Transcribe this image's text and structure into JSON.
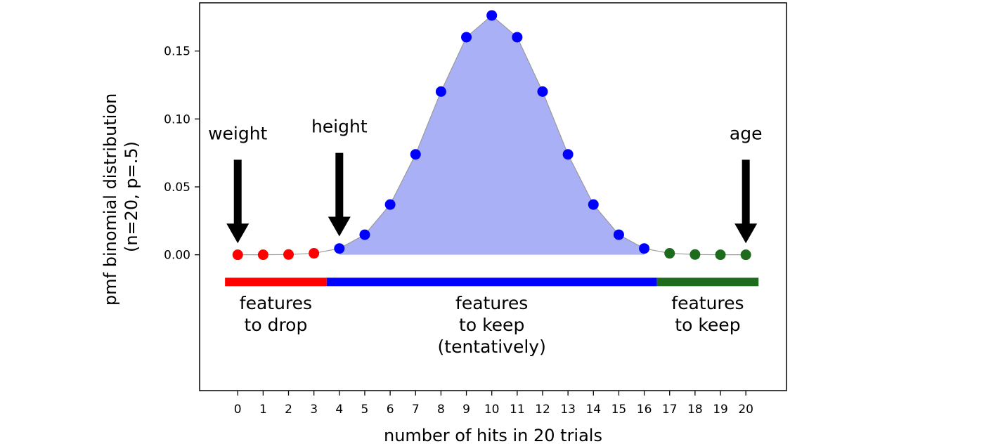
{
  "chart_data": {
    "type": "line",
    "xlabel": "number of hits in 20 trials",
    "ylabel_lines": [
      "pmf binomial distribution",
      "(n=20, p=.5)"
    ],
    "xlim": [
      -1.5,
      21.6
    ],
    "ylim": [
      -0.1,
      0.1855
    ],
    "x_ticks": [
      0,
      1,
      2,
      3,
      4,
      5,
      6,
      7,
      8,
      9,
      10,
      11,
      12,
      13,
      14,
      15,
      16,
      17,
      18,
      19,
      20
    ],
    "y_ticks": [
      {
        "value": 0.0,
        "label": "0.00"
      },
      {
        "value": 0.05,
        "label": "0.05"
      },
      {
        "value": 0.1,
        "label": "0.10"
      },
      {
        "value": 0.15,
        "label": "0.15"
      }
    ],
    "x": [
      0,
      1,
      2,
      3,
      4,
      5,
      6,
      7,
      8,
      9,
      10,
      11,
      12,
      13,
      14,
      15,
      16,
      17,
      18,
      19,
      20
    ],
    "y": [
      1e-06,
      1.9e-05,
      0.000181,
      0.001087,
      0.004621,
      0.014786,
      0.036964,
      0.073929,
      0.120134,
      0.160179,
      0.176197,
      0.160179,
      0.120134,
      0.073929,
      0.036964,
      0.014786,
      0.004621,
      0.001087,
      0.000181,
      1.9e-05,
      1e-06
    ],
    "fill_range": [
      4,
      16
    ],
    "colors": {
      "drop": "#ff0000",
      "keep_tentative": "#0000ff",
      "keep": "#1e6b1e",
      "fill": "#aab0f6",
      "line": "#9a9a9a",
      "arrow": "#000000"
    },
    "point_groups": [
      {
        "from": 0,
        "to": 3,
        "color": "drop"
      },
      {
        "from": 4,
        "to": 16,
        "color": "keep_tentative"
      },
      {
        "from": 17,
        "to": 20,
        "color": "keep"
      }
    ],
    "bars": [
      {
        "x_start": -0.5,
        "x_end": 3.5,
        "color": "drop"
      },
      {
        "x_start": 3.5,
        "x_end": 16.5,
        "color": "keep_tentative"
      },
      {
        "x_start": 16.5,
        "x_end": 20.5,
        "color": "keep"
      }
    ],
    "bar_y": -0.02,
    "annotations": [
      {
        "text": "weight",
        "x": 0,
        "label_y": 0.085,
        "arrow_from_y": 0.07,
        "arrow_to_y": 0.0085
      },
      {
        "text": "height",
        "x": 4,
        "label_y": 0.09,
        "arrow_from_y": 0.075,
        "arrow_to_y": 0.0135
      },
      {
        "text": "age",
        "x": 20,
        "label_y": 0.085,
        "arrow_from_y": 0.07,
        "arrow_to_y": 0.0085
      }
    ],
    "region_labels": [
      {
        "lines": [
          "features",
          "to drop"
        ],
        "x": 1.5,
        "y": -0.04
      },
      {
        "lines": [
          "features",
          "to keep",
          "(tentatively)"
        ],
        "x": 10,
        "y": -0.04
      },
      {
        "lines": [
          "features",
          "to keep"
        ],
        "x": 18.5,
        "y": -0.04
      }
    ]
  }
}
